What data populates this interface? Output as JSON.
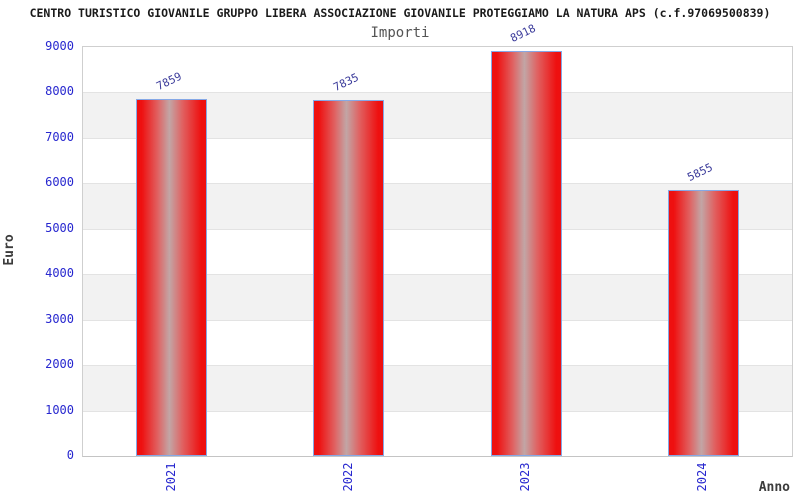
{
  "chart_data": {
    "type": "bar",
    "title": "CENTRO TURISTICO GIOVANILE GRUPPO LIBERA ASSOCIAZIONE GIOVANILE PROTEGGIAMO LA NATURA APS (c.f.97069500839)",
    "subtitle": "Importi",
    "categories": [
      "2021",
      "2022",
      "2023",
      "2024"
    ],
    "values": [
      7859,
      7835,
      8918,
      5855
    ],
    "xlabel": "Anno",
    "ylabel": "Euro",
    "ylim": [
      0,
      9000
    ],
    "yticks": [
      0,
      1000,
      2000,
      3000,
      4000,
      5000,
      6000,
      7000,
      8000,
      9000
    ],
    "legend": "none",
    "grid": "horizontal-alternating-bands",
    "bar_value_labels_rotated": true,
    "x_tick_labels_rotated": true,
    "colors": {
      "bar_edge_red": "#ee1010",
      "bar_center": "#c2a6a6",
      "bar_border": "#85a8e6",
      "tick_label": "#2727cf",
      "value_label": "#3a3a9a",
      "band_gray": "#f2f2f2",
      "grid_color": "#e3e3e3",
      "plot_border": "#cfcfcf",
      "title_color": "#1a1a1a",
      "subtitle_color": "#545454",
      "axis_title_color": "#3c3c3c"
    }
  }
}
